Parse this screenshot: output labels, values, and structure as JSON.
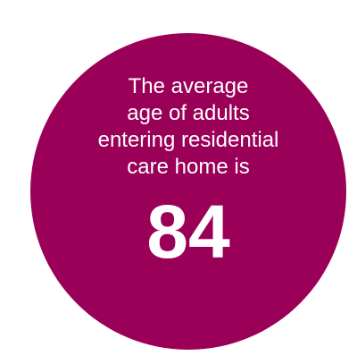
{
  "infographic": {
    "lines": [
      "The average",
      "age of adults",
      "entering residential",
      "care home is"
    ],
    "value": "84"
  },
  "colors": {
    "circle": "#9b0058",
    "text": "#ffffff"
  }
}
